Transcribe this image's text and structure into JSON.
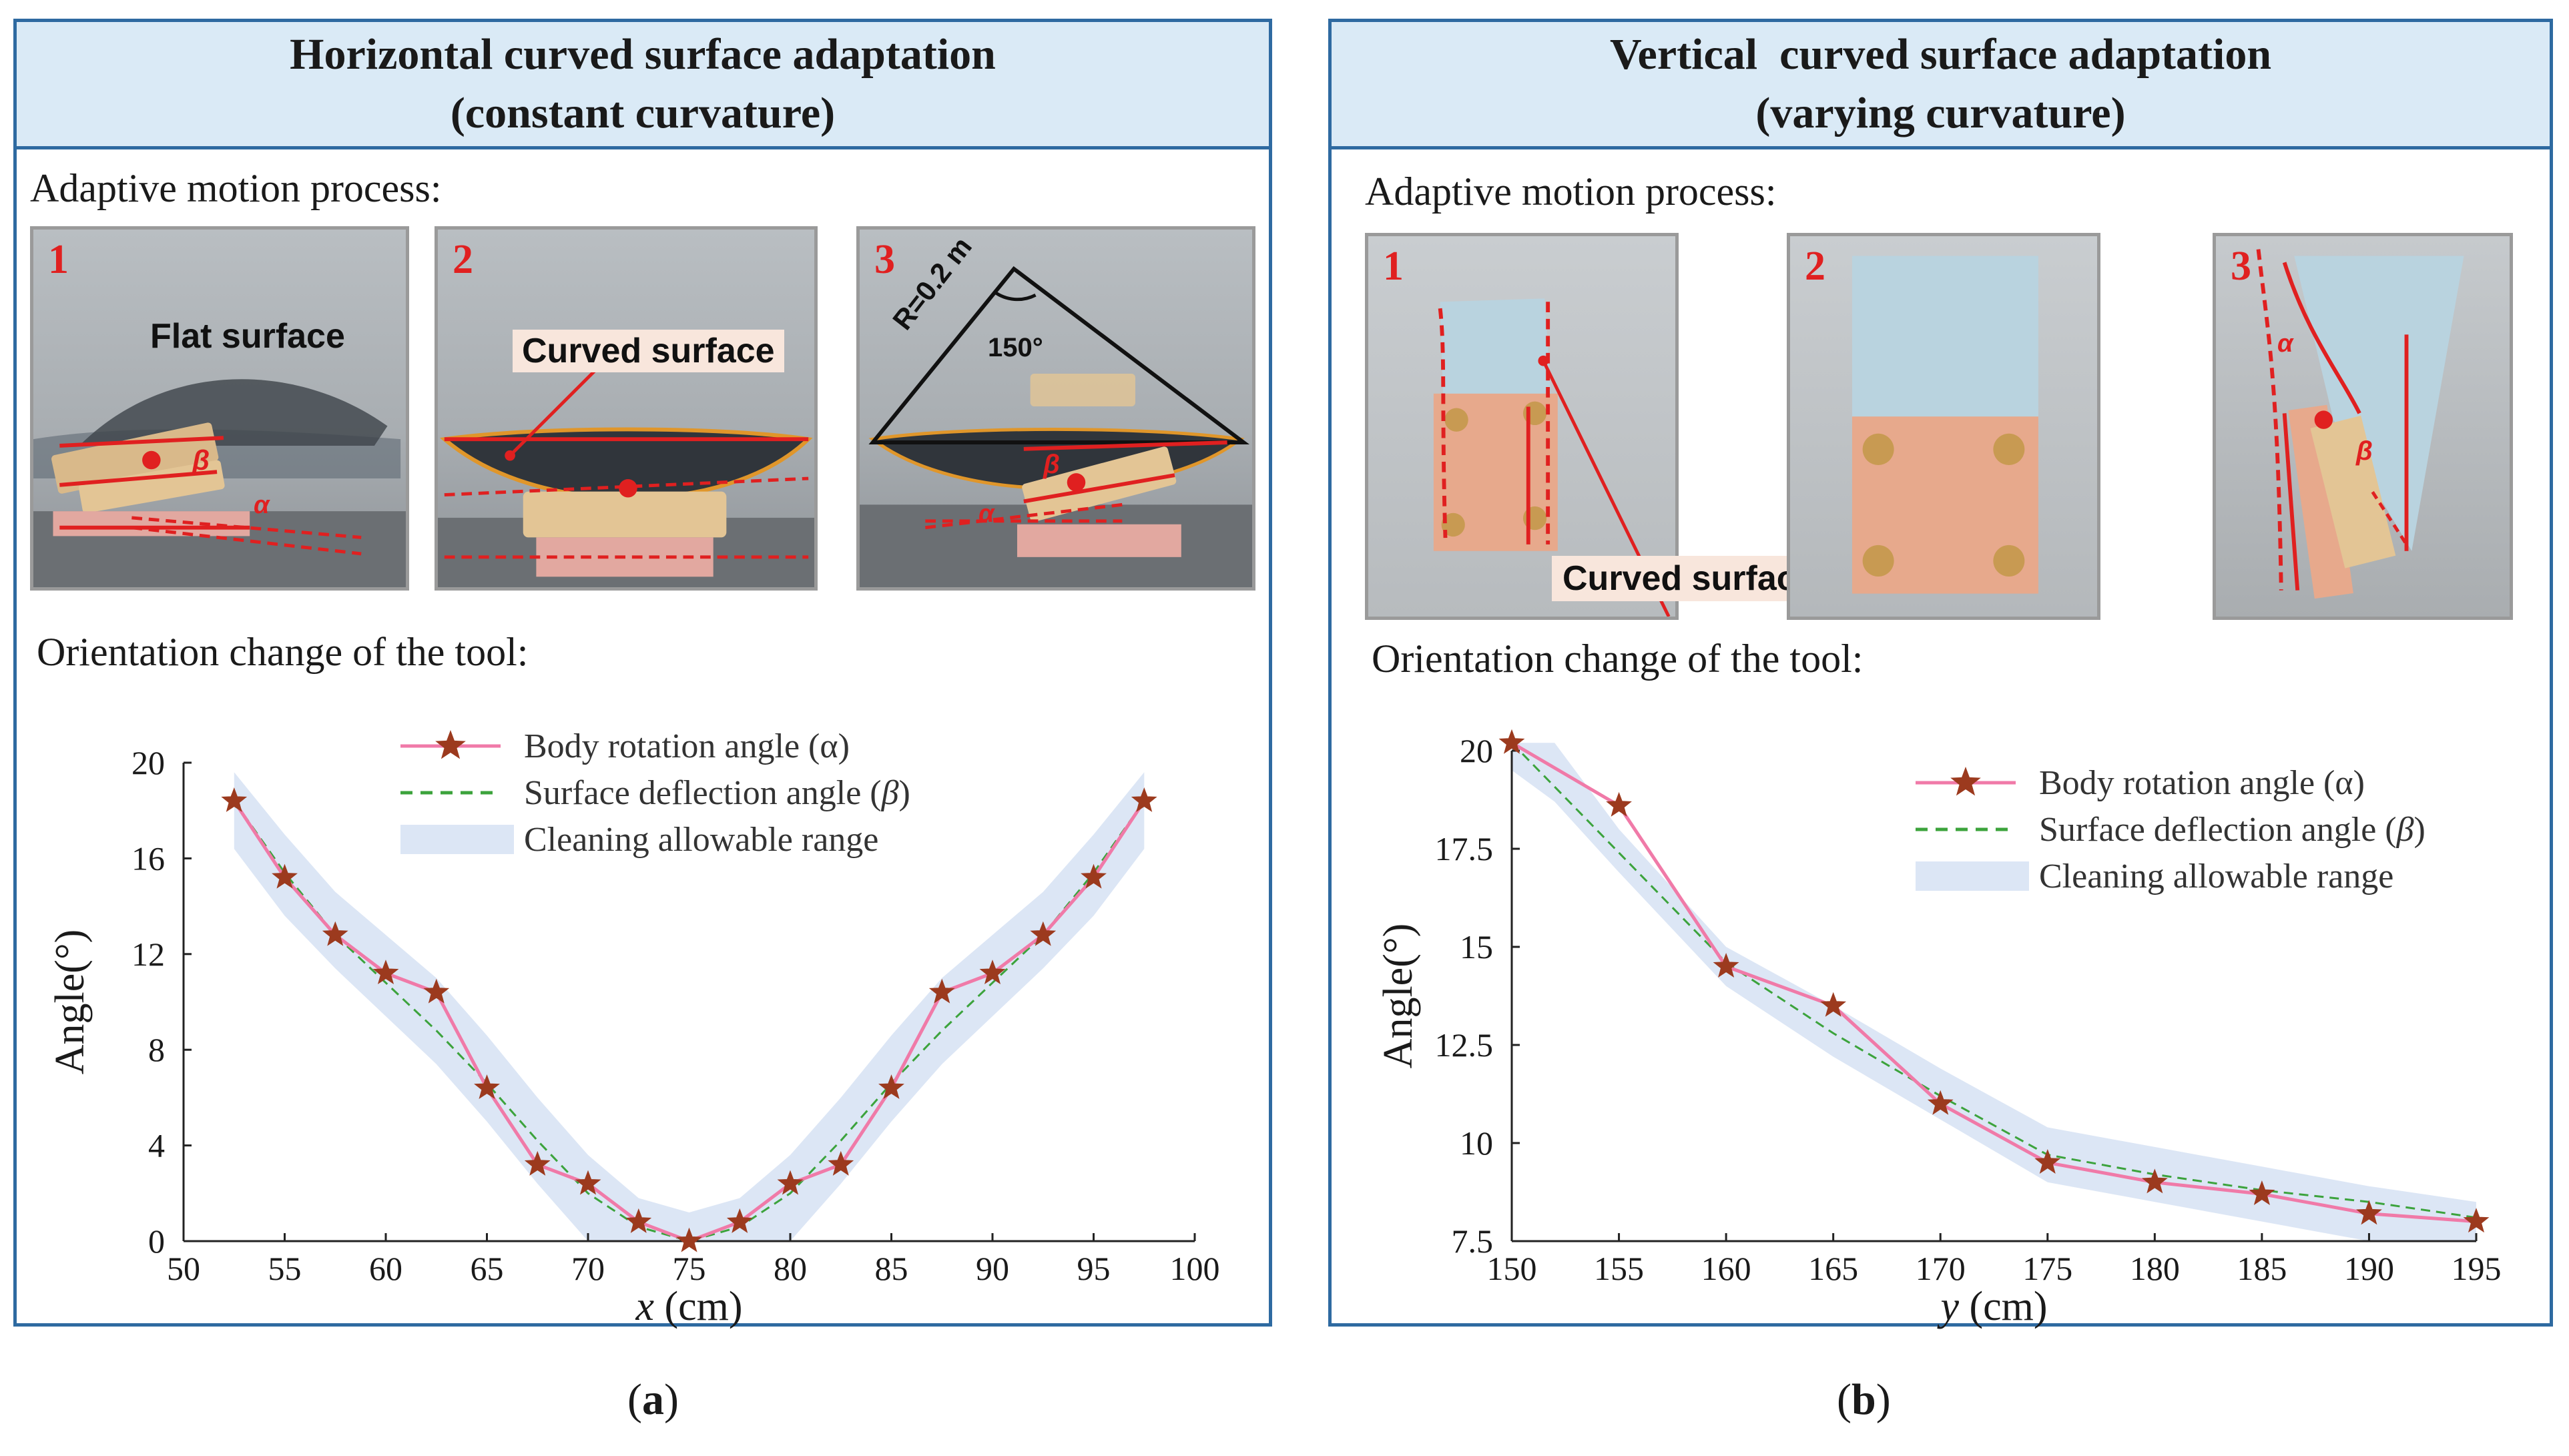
{
  "figure": {
    "caption_a": "a",
    "caption_b": "b"
  },
  "panel_a": {
    "title_line1": "Horizontal curved surface adaptation",
    "title_line2": "(constant curvature)",
    "process_label": "Adaptive motion process:",
    "orientation_label": "Orientation change of the tool:",
    "photos": [
      {
        "num": "1",
        "callout": "Flat surface",
        "alpha": "α",
        "beta": "β"
      },
      {
        "num": "2",
        "callout": "Curved surface"
      },
      {
        "num": "3",
        "radius": "R=0.2 m",
        "angle": "150°",
        "alpha": "α",
        "beta": "β"
      }
    ]
  },
  "panel_b": {
    "title_line1": "Vertical  curved surface adaptation",
    "title_line2": "(varying curvature)",
    "process_label": "Adaptive motion process:",
    "orientation_label": "Orientation change of the tool:",
    "photos": [
      {
        "num": "1",
        "callout": "Curved surface"
      },
      {
        "num": "2"
      },
      {
        "num": "3",
        "alpha": "α",
        "beta": "β"
      }
    ]
  },
  "colors": {
    "band": "#dce6f5",
    "alpha_line": "#f07aa8",
    "star": "#9c3a1e",
    "beta_line": "#3ca33c",
    "frame": "#2e6aa1",
    "header": "#daeaf6",
    "marker": "#e02020"
  },
  "chart_data": [
    {
      "type": "line",
      "xlabel_var": "x",
      "xlabel_unit": " (cm)",
      "ylabel": "Angle(°)",
      "xlim": [
        50,
        100
      ],
      "ylim": [
        0,
        20
      ],
      "xticks": [
        50,
        55,
        60,
        65,
        70,
        75,
        80,
        85,
        90,
        95,
        100
      ],
      "xtick_labels": [
        "50",
        "55",
        "60",
        "65",
        "70",
        "75",
        "80",
        "85",
        "90",
        "95",
        "100"
      ],
      "yticks": [
        0,
        4,
        8,
        12,
        16,
        20
      ],
      "ytick_labels": [
        "0",
        "4",
        "8",
        "12",
        "16",
        "20"
      ],
      "legend": {
        "position": "top-center",
        "alpha_label": "Body rotation angle (α)",
        "beta_label_prefix": "Surface deflection angle (",
        "beta_symbol": "β",
        "beta_label_suffix": ")",
        "band_label": "Cleaning allowable range"
      },
      "series": [
        {
          "name": "Body rotation angle (α)",
          "x": [
            52.5,
            55,
            57.5,
            60,
            62.5,
            65,
            67.5,
            70,
            72.5,
            75,
            77.5,
            80,
            82.5,
            85,
            87.5,
            90,
            92.5,
            95,
            97.5
          ],
          "y": [
            18.4,
            15.2,
            12.8,
            11.2,
            10.4,
            6.4,
            3.2,
            2.4,
            0.8,
            0,
            0.8,
            2.4,
            3.2,
            6.4,
            10.4,
            11.2,
            12.8,
            15.2,
            18.4
          ]
        },
        {
          "name": "Surface deflection angle (β)",
          "x": [
            52.5,
            55,
            57.5,
            60,
            62.5,
            65,
            67.5,
            70,
            72.5,
            75,
            77.5,
            80,
            82.5,
            85,
            87.5,
            90,
            92.5,
            95,
            97.5
          ],
          "y": [
            18.4,
            15.4,
            12.8,
            10.8,
            8.8,
            6.6,
            4.2,
            2.0,
            0.6,
            0,
            0.6,
            2.0,
            4.2,
            6.6,
            8.8,
            10.8,
            12.8,
            15.4,
            18.4
          ]
        }
      ],
      "band": {
        "name": "Cleaning allowable range",
        "x": [
          52.5,
          55,
          57.5,
          60,
          62.5,
          65,
          67.5,
          70,
          72.5,
          75,
          77.5,
          80,
          82.5,
          85,
          87.5,
          90,
          92.5,
          95,
          97.5
        ],
        "lower": [
          16.4,
          13.6,
          11.4,
          9.4,
          7.4,
          5.0,
          2.4,
          0,
          0,
          0,
          0,
          0,
          2.4,
          5.0,
          7.4,
          9.4,
          11.4,
          13.6,
          16.4
        ],
        "upper": [
          19.6,
          17.0,
          14.6,
          12.8,
          11.0,
          8.6,
          6.0,
          3.6,
          1.8,
          1.2,
          1.8,
          3.6,
          6.0,
          8.6,
          11.0,
          12.8,
          14.6,
          17.0,
          19.6
        ]
      }
    },
    {
      "type": "line",
      "xlabel_var": "y",
      "xlabel_unit": " (cm)",
      "ylabel": "Angle(°)",
      "xlim": [
        150,
        195
      ],
      "ylim": [
        7.5,
        20
      ],
      "xticks": [
        150,
        155,
        160,
        165,
        170,
        175,
        180,
        185,
        190,
        195
      ],
      "xtick_labels": [
        "150",
        "155",
        "160",
        "165",
        "170",
        "175",
        "180",
        "185",
        "190",
        "195"
      ],
      "yticks": [
        7.5,
        10,
        12.5,
        15,
        17.5,
        20
      ],
      "ytick_labels": [
        "7.5",
        "10",
        "12.5",
        "15",
        "17.5",
        "20"
      ],
      "legend": {
        "position": "top-right",
        "alpha_label": "Body rotation angle (α)",
        "beta_label_prefix": "Surface deflection angle (",
        "beta_symbol": "β",
        "beta_label_suffix": ")",
        "band_label": "Cleaning allowable range"
      },
      "series": [
        {
          "name": "Body rotation angle (α)",
          "x": [
            150,
            155,
            160,
            165,
            170,
            175,
            180,
            185,
            190,
            195
          ],
          "y": [
            20.2,
            18.6,
            14.5,
            13.5,
            11.0,
            9.5,
            9.0,
            8.7,
            8.2,
            8.0
          ]
        },
        {
          "name": "Surface deflection angle (β)",
          "x": [
            150,
            155,
            160,
            165,
            170,
            175,
            180,
            185,
            190,
            195
          ],
          "y": [
            20.2,
            17.4,
            14.6,
            12.8,
            11.2,
            9.7,
            9.2,
            8.8,
            8.5,
            8.1
          ]
        }
      ],
      "band": {
        "name": "Cleaning allowable range",
        "x": [
          150,
          152,
          155,
          160,
          165,
          170,
          175,
          180,
          185,
          190,
          195
        ],
        "lower": [
          19.5,
          18.7,
          16.9,
          14.0,
          12.2,
          10.6,
          9.0,
          8.5,
          8.0,
          7.5,
          7.5
        ],
        "upper": [
          20.2,
          20.2,
          18.0,
          15.0,
          13.5,
          11.9,
          10.4,
          9.9,
          9.4,
          8.9,
          8.5
        ]
      }
    }
  ]
}
